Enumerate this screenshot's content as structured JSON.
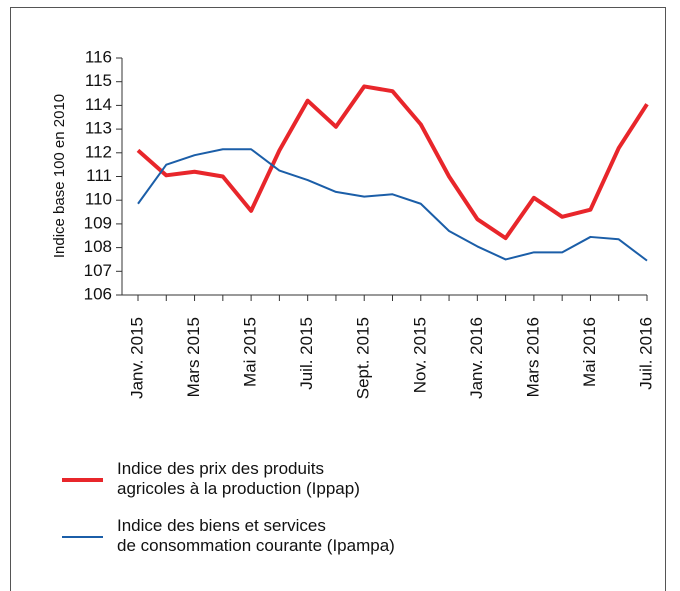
{
  "chart_data": {
    "type": "line",
    "y_label": "Indice base 100 en 2010",
    "categories": [
      "Janv. 2015",
      null,
      "Mars 2015",
      null,
      "Mai 2015",
      null,
      "Juil. 2015",
      null,
      "Sept. 2015",
      null,
      "Nov. 2015",
      null,
      "Janv. 2016",
      null,
      "Mars 2016",
      null,
      "Mai 2016",
      null,
      "Juil. 2016"
    ],
    "series": [
      {
        "name": "Indice des prix des produits\nagricoles à la production (Ippap)",
        "color": "#e8262b",
        "values": [
          112.1,
          111.05,
          111.2,
          111.0,
          109.55,
          112.1,
          114.2,
          113.1,
          114.8,
          114.6,
          113.2,
          111.0,
          109.2,
          108.4,
          110.1,
          109.3,
          109.6,
          112.2,
          114.05
        ]
      },
      {
        "name": "Indice des biens et services\nde consommation courante (Ipampa)",
        "color": "#1b5ea8",
        "values": [
          109.85,
          111.5,
          111.9,
          112.15,
          112.15,
          111.25,
          110.85,
          110.35,
          110.15,
          110.25,
          109.85,
          108.7,
          108.05,
          107.5,
          107.8,
          107.8,
          108.45,
          108.35,
          107.45
        ]
      }
    ],
    "ylim": [
      106,
      116
    ],
    "yticks": [
      106,
      107,
      108,
      109,
      110,
      111,
      112,
      113,
      114,
      115,
      116
    ]
  }
}
